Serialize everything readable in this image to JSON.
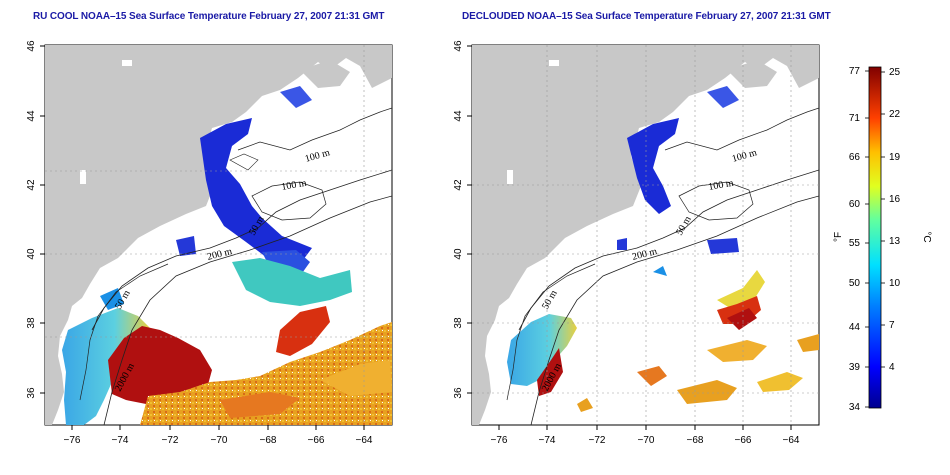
{
  "maps": [
    {
      "title": "RU COOL NOAA–15 Sea Surface Temperature February 27, 2007 21:31 GMT",
      "x_ticks": [
        "−76",
        "−74",
        "−72",
        "−70",
        "−68",
        "−66",
        "−64"
      ],
      "y_ticks": [
        "46",
        "44",
        "42",
        "40",
        "38",
        "36"
      ],
      "contour_labels": [
        "100 m",
        "100 m",
        "50 m",
        "200 m",
        "50 m",
        "2000 m"
      ]
    },
    {
      "title": "DECLOUDED NOAA–15 Sea Surface Temperature February 27, 2007 21:31 GMT",
      "x_ticks": [
        "−76",
        "−74",
        "−72",
        "−70",
        "−68",
        "−66",
        "−64"
      ],
      "y_ticks": [
        "46",
        "44",
        "42",
        "40",
        "38",
        "36"
      ],
      "contour_labels": [
        "100 m",
        "100 m",
        "50 m",
        "200 m",
        "50 m",
        "2000 m"
      ]
    }
  ],
  "colorbar": {
    "f_label": "°F",
    "c_label": "°C",
    "f_ticks": [
      "77",
      "71",
      "66",
      "60",
      "55",
      "50",
      "44",
      "39",
      "34"
    ],
    "c_ticks": [
      "25",
      "22",
      "19",
      "16",
      "13",
      "10",
      "7",
      "4"
    ]
  },
  "colors": {
    "title": "#1a1aa6",
    "land": "#c8c8c8",
    "cold": "#1a2bd6",
    "cool": "#2f9ee8",
    "mid": "#e8d82a",
    "warm": "#e87a1a",
    "hot": "#b01010"
  }
}
